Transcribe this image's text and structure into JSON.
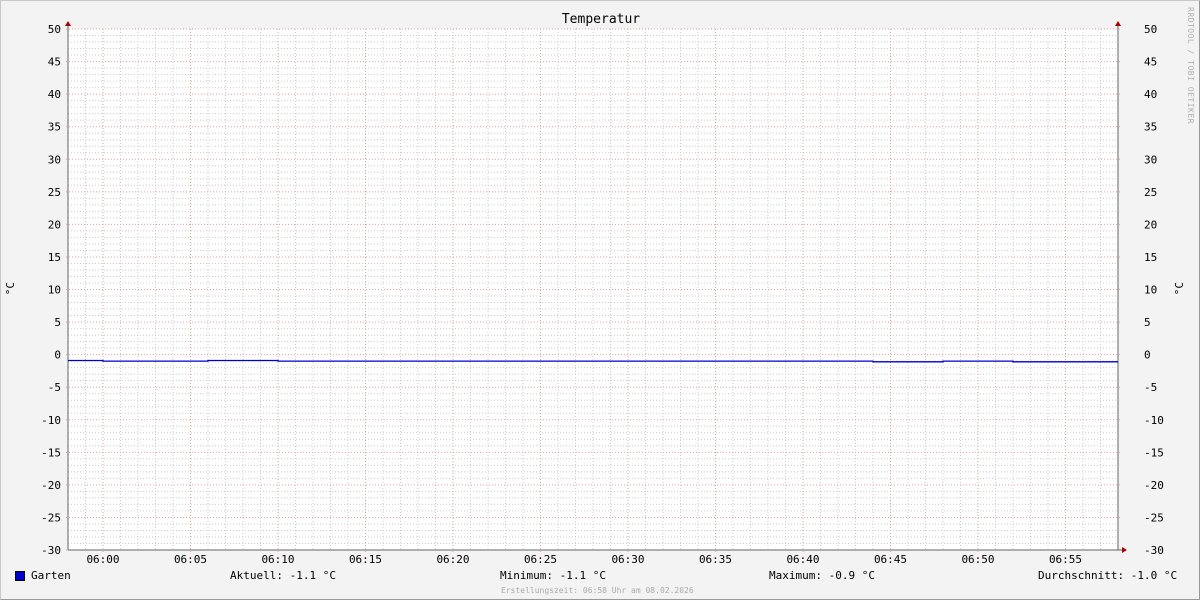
{
  "chart_data": {
    "type": "line",
    "title": "Temperatur",
    "ylabel": "°C",
    "ylim": [
      -30,
      50
    ],
    "yticks": [
      50,
      45,
      40,
      35,
      30,
      25,
      20,
      15,
      10,
      5,
      0,
      -5,
      -10,
      -15,
      -20,
      -25,
      -30
    ],
    "xlim": [
      "05:58",
      "06:58"
    ],
    "xticks": [
      "06:00",
      "06:05",
      "06:10",
      "06:15",
      "06:20",
      "06:25",
      "06:30",
      "06:35",
      "06:40",
      "06:45",
      "06:50",
      "06:55"
    ],
    "grid": true,
    "series": [
      {
        "name": "Garten",
        "color": "#0000cc",
        "x": [
          "05:58",
          "06:00",
          "06:06",
          "06:10",
          "06:44",
          "06:48",
          "06:52",
          "06:58"
        ],
        "values": [
          -0.9,
          -1.0,
          -0.9,
          -1.0,
          -1.1,
          -1.0,
          -1.1,
          -1.1
        ]
      }
    ]
  },
  "legend": {
    "series": "Garten",
    "current": "Aktuell: -1.1 °C",
    "minimum": "Minimum: -1.1 °C",
    "maximum": "Maximum: -0.9 °C",
    "average": "Durchschnitt: -1.0 °C"
  },
  "watermark": "RRDTOOL / TOBI OETIKER",
  "footer": "Erstellungszeit: 06:58 Uhr am 08.02.2026"
}
